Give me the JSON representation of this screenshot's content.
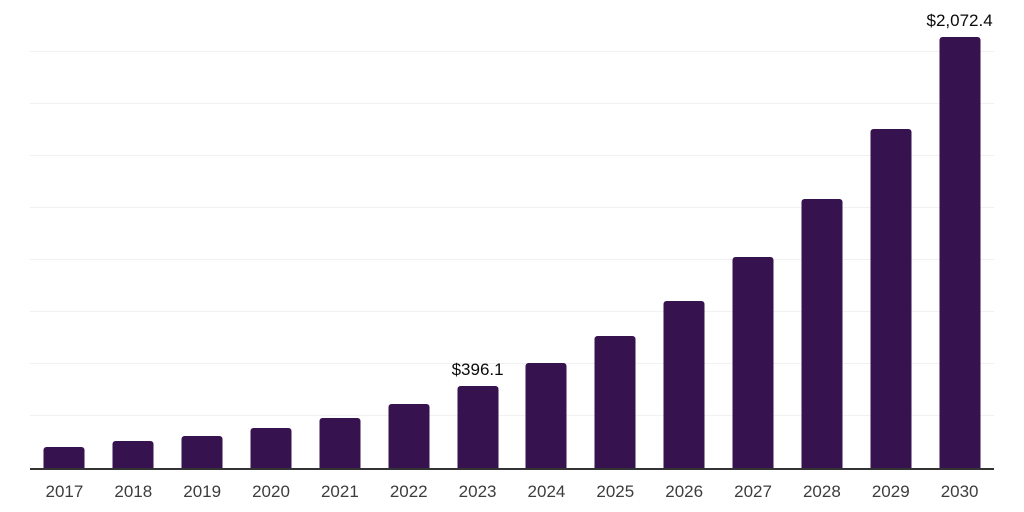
{
  "chart_data": {
    "type": "bar",
    "title": "",
    "xlabel": "",
    "ylabel": "",
    "categories": [
      "2017",
      "2018",
      "2019",
      "2020",
      "2021",
      "2022",
      "2023",
      "2024",
      "2025",
      "2026",
      "2027",
      "2028",
      "2029",
      "2030"
    ],
    "values": [
      103,
      129,
      153,
      191,
      242,
      306,
      396.1,
      507,
      635,
      804,
      1015,
      1292,
      1628,
      2072.4
    ],
    "data_labels": [
      null,
      null,
      null,
      null,
      null,
      null,
      "$396.1",
      null,
      null,
      null,
      null,
      null,
      null,
      "$2,072.4"
    ],
    "ylim": [
      0,
      2250
    ],
    "gridline_step": 250,
    "grid": true,
    "legend": false,
    "y_tick_labels_visible": false,
    "colors": {
      "bar": "#36124E",
      "axis_line": "#333333",
      "gridline": "#f1f1f1",
      "x_tick_label": "#3d3d3d",
      "data_label": "#0a0a0a",
      "background": "#ffffff"
    }
  }
}
